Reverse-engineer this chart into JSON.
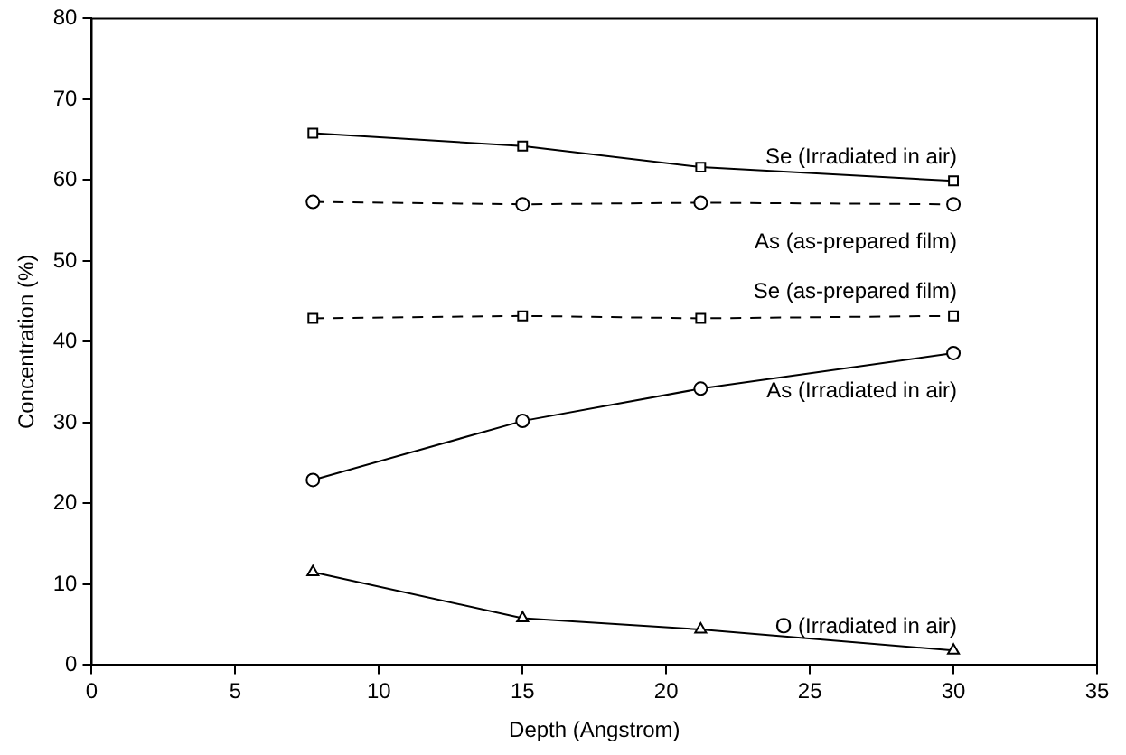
{
  "chart_data": {
    "type": "line",
    "xlabel": "Depth (Angstrom)",
    "ylabel": "Concentration (%)",
    "xlim": [
      0,
      35
    ],
    "xticks": [
      0,
      5,
      10,
      15,
      20,
      25,
      30,
      35
    ],
    "ylim": [
      0,
      80
    ],
    "yticks": [
      0,
      10,
      20,
      30,
      40,
      50,
      60,
      70,
      80
    ],
    "grid": false,
    "legend": false,
    "x": [
      7.7,
      15,
      21.2,
      30
    ],
    "series": [
      {
        "name": "Se (Irradiated in air)",
        "color": "#000000",
        "marker": "square",
        "line_style": "solid",
        "values": [
          65.8,
          64.2,
          61.6,
          59.9
        ]
      },
      {
        "name": "As (as-prepared film)",
        "color": "#000000",
        "marker": "circle",
        "line_style": "dashed",
        "values": [
          57.3,
          57.0,
          57.2,
          57.0
        ]
      },
      {
        "name": "Se (as-prepared film)",
        "color": "#000000",
        "marker": "square",
        "line_style": "dashed",
        "values": [
          42.9,
          43.2,
          42.9,
          43.2
        ]
      },
      {
        "name": "As (Irradiated in air)",
        "color": "#000000",
        "marker": "circle",
        "line_style": "solid",
        "values": [
          22.9,
          30.2,
          34.2,
          38.6
        ]
      },
      {
        "name": "O (Irradiated in air)",
        "color": "#000000",
        "marker": "triangle",
        "line_style": "solid",
        "values": [
          11.5,
          5.8,
          4.4,
          1.8
        ]
      }
    ]
  }
}
